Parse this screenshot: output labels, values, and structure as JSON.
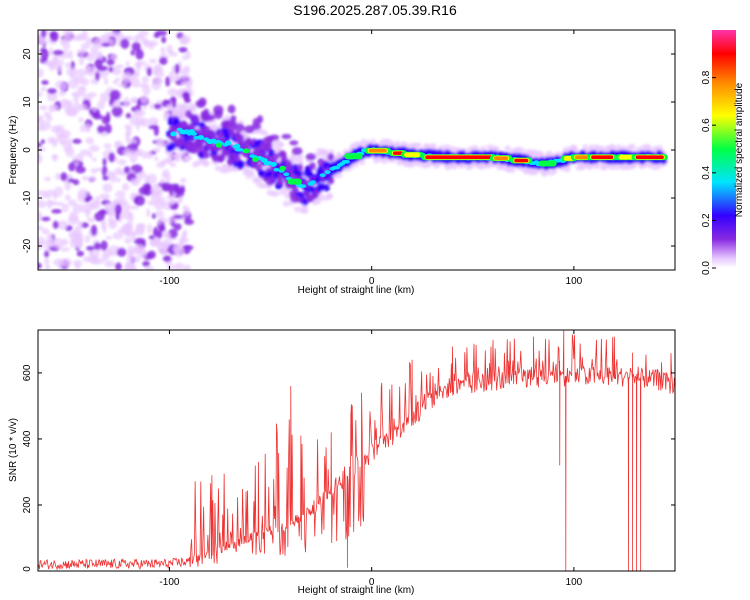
{
  "title": "S196.2025.287.05.39.R16",
  "colors": {
    "snr_line": "#ee3333",
    "frame": "#000000",
    "colormap": [
      "#ffffff",
      "#e8c8ff",
      "#8a2be2",
      "#3300ff",
      "#00e5ff",
      "#00ff44",
      "#ffff00",
      "#ff8800",
      "#ff0000",
      "#ff33aa"
    ]
  },
  "chart_data": [
    {
      "type": "heatmap",
      "name": "spectrogram",
      "xlabel": "Height of straight line (km)",
      "ylabel": "Frequency (Hz)",
      "xlim": [
        -165,
        150
      ],
      "ylim": [
        -25,
        25
      ],
      "xticks": [
        -100,
        0,
        100
      ],
      "yticks": [
        -20,
        -10,
        0,
        10,
        20
      ],
      "xtick_labels": [
        "-100",
        "0",
        "100"
      ],
      "ytick_labels": [
        "-20",
        "-10",
        "0",
        "10",
        "20"
      ],
      "ridge": {
        "x": [
          -100,
          -95,
          -90,
          -85,
          -80,
          -75,
          -70,
          -65,
          -60,
          -55,
          -50,
          -45,
          -40,
          -35,
          -30,
          -25,
          -20,
          -15,
          -10,
          -5,
          0,
          10,
          20,
          40,
          60,
          70,
          80,
          85,
          90,
          100,
          120,
          150
        ],
        "y": [
          3.0,
          4.0,
          3.5,
          2.5,
          2.0,
          1.5,
          1.0,
          0.0,
          -1.0,
          -2.0,
          -3.0,
          -4.5,
          -6.0,
          -7.5,
          -7.0,
          -5.5,
          -4.0,
          -3.0,
          -1.5,
          -0.5,
          0.0,
          -0.5,
          -1.0,
          -1.5,
          -1.5,
          -2.0,
          -2.5,
          -3.0,
          -2.5,
          -1.5,
          -1.5,
          -1.5
        ]
      },
      "noise_region_x": [
        -165,
        -100
      ]
    },
    {
      "type": "colorbar",
      "name": "colorbar",
      "label": "Normalized spectral amplitude",
      "range": [
        0.0,
        1.0
      ],
      "ticks": [
        0.0,
        0.2,
        0.4,
        0.6,
        0.8
      ],
      "tick_labels": [
        "0.0",
        "0.2",
        "0.4",
        "0.6",
        "0.8"
      ]
    },
    {
      "type": "line",
      "name": "snr",
      "xlabel": "Height of straight line (km)",
      "ylabel": "SNR (10 * v/v)",
      "xlim": [
        -165,
        150
      ],
      "ylim": [
        0,
        730
      ],
      "xticks": [
        -100,
        0,
        100
      ],
      "yticks": [
        0,
        200,
        400,
        600
      ],
      "xtick_labels": [
        "-100",
        "0",
        "100"
      ],
      "ytick_labels": [
        "0",
        "200",
        "400",
        "600"
      ],
      "baseline": {
        "x": [
          -165,
          -100,
          -90,
          -80,
          -70,
          -60,
          -50,
          -40,
          -30,
          -20,
          -10,
          0,
          10,
          20,
          30,
          40,
          60,
          80,
          100,
          120,
          140,
          150
        ],
        "y": [
          20,
          22,
          30,
          55,
          80,
          100,
          120,
          140,
          180,
          240,
          300,
          360,
          410,
          460,
          520,
          550,
          575,
          585,
          590,
          590,
          580,
          560
        ]
      },
      "spike_peaks": [
        {
          "x": -79,
          "y": 290
        },
        {
          "x": -56,
          "y": 330
        },
        {
          "x": -40,
          "y": 560
        },
        {
          "x": -35,
          "y": 410
        },
        {
          "x": -20,
          "y": 420
        },
        {
          "x": -10,
          "y": 505
        },
        {
          "x": -5,
          "y": 540
        },
        {
          "x": 5,
          "y": 570
        },
        {
          "x": 20,
          "y": 640
        },
        {
          "x": 40,
          "y": 680
        },
        {
          "x": 60,
          "y": 700
        },
        {
          "x": 80,
          "y": 710
        },
        {
          "x": 95,
          "y": 730
        },
        {
          "x": 120,
          "y": 710
        },
        {
          "x": 148,
          "y": 660
        }
      ],
      "dropouts": [
        {
          "x": -12,
          "y": 10
        },
        {
          "x": 93,
          "y": 320
        },
        {
          "x": 96,
          "y": 0
        },
        {
          "x": 127,
          "y": 0
        },
        {
          "x": 129,
          "y": 0
        },
        {
          "x": 131,
          "y": 0
        },
        {
          "x": 133,
          "y": 0
        }
      ],
      "noise_amplitude_low": 15
    }
  ]
}
